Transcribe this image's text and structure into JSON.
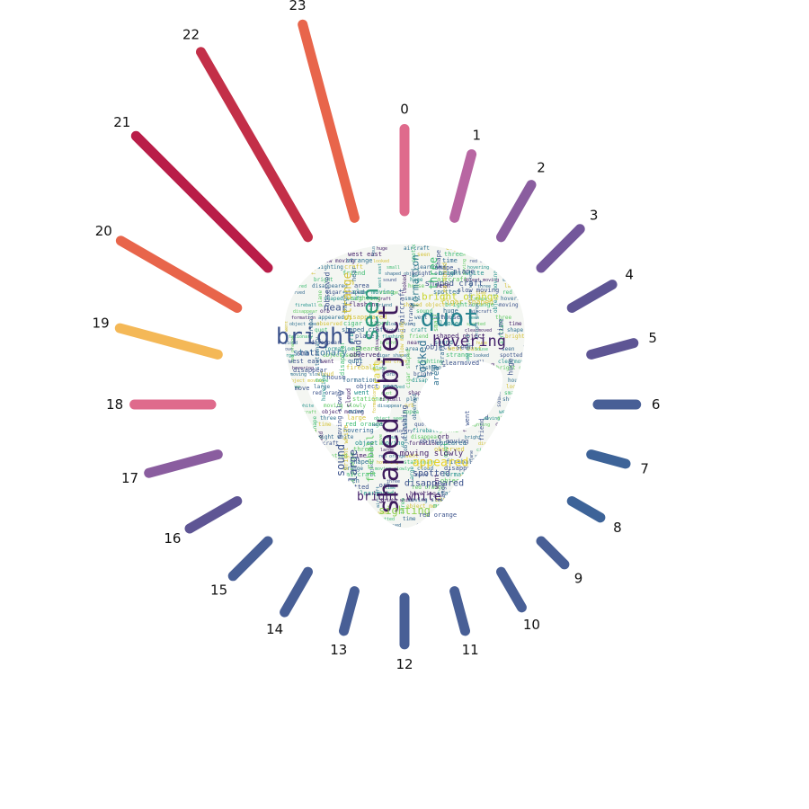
{
  "chart_data": {
    "type": "radial-bar",
    "categories": [
      "0",
      "1",
      "2",
      "3",
      "4",
      "5",
      "6",
      "7",
      "8",
      "9",
      "10",
      "11",
      "12",
      "13",
      "14",
      "15",
      "16",
      "17",
      "18",
      "19",
      "20",
      "21",
      "22",
      "23"
    ],
    "values": [
      30,
      24,
      22,
      20,
      17,
      16,
      14,
      13,
      12,
      12,
      15,
      15,
      17,
      15,
      17,
      18,
      20,
      26,
      28,
      37,
      49,
      68,
      78,
      73
    ],
    "colors": [
      "#df6a8c",
      "#b866a2",
      "#8a5d9f",
      "#73579b",
      "#5e5594",
      "#5e5594",
      "#485f96",
      "#3d6398",
      "#3d6398",
      "#485f96",
      "#485f96",
      "#485f96",
      "#485f96",
      "#485f96",
      "#485f96",
      "#485f96",
      "#5e5594",
      "#8a5d9f",
      "#df6a8c",
      "#f4b857",
      "#e8654b",
      "#b91d48",
      "#c32f48",
      "#e8654b"
    ],
    "title": "",
    "xlabel": "",
    "ylabel": "",
    "grid": false,
    "legend": "none"
  },
  "wordcloud": {
    "shape": "alien-head",
    "words": [
      {
        "text": "shaped object",
        "color": "#3d1a5c"
      },
      {
        "text": "quot",
        "color": "#26828e"
      },
      {
        "text": "seen",
        "color": "#2e9a7e"
      },
      {
        "text": "bright",
        "color": "#3b528b"
      },
      {
        "text": "hovering",
        "color": "#44216a"
      },
      {
        "text": "strange",
        "color": "#d4c33a"
      },
      {
        "text": "formation",
        "color": "#2c7a8c"
      },
      {
        "text": "bright orange",
        "color": "#c9d52f"
      },
      {
        "text": "shaped craft",
        "color": "#3b528b"
      },
      {
        "text": "three",
        "color": "#3fbc73"
      },
      {
        "text": "near",
        "color": "#3b528b"
      },
      {
        "text": "stationary",
        "color": "#3e7aa0"
      },
      {
        "text": "looked",
        "color": "#2a6e8e"
      },
      {
        "text": "appeared",
        "color": "#e8d22a"
      },
      {
        "text": "bright white",
        "color": "#44216a"
      },
      {
        "text": "sighting",
        "color": "#8fd14f"
      },
      {
        "text": "large",
        "color": "#3b528b"
      },
      {
        "text": "sound",
        "color": "#3b528b"
      },
      {
        "text": "fireball",
        "color": "#5ec962"
      },
      {
        "text": "spotted",
        "color": "#3b528b"
      },
      {
        "text": "disappeared",
        "color": "#3b528b"
      },
      {
        "text": "moving slowly",
        "color": "#44216a"
      },
      {
        "text": "craft",
        "color": "#dbd234"
      },
      {
        "text": "object seen",
        "color": "#3b528b"
      },
      {
        "text": "huge",
        "color": "#3b528b"
      },
      {
        "text": "plane",
        "color": "#3b528b"
      },
      {
        "text": "time",
        "color": "#3b528b"
      },
      {
        "text": "area",
        "color": "#2a6e8e"
      },
      {
        "text": "cloud",
        "color": "#3b528b"
      },
      {
        "text": "small",
        "color": "#3b528b"
      },
      {
        "text": "observed",
        "color": "#3b528b"
      },
      {
        "text": "aircraft",
        "color": "#3b528b"
      },
      {
        "text": "flashing",
        "color": "#3b528b"
      },
      {
        "text": "red orange",
        "color": "#3b528b"
      },
      {
        "text": "west east",
        "color": "#3b528b"
      },
      {
        "text": "disappear",
        "color": "#3b528b"
      },
      {
        "text": "clearmoved",
        "color": "#3b528b"
      },
      {
        "text": "cigar shaped",
        "color": "#d4c33a"
      },
      {
        "text": "object moving",
        "color": "#3b528b"
      },
      {
        "text": "friend",
        "color": "#3b528b"
      },
      {
        "text": "went",
        "color": "#3b528b"
      },
      {
        "text": "house",
        "color": "#3b528b"
      },
      {
        "text": "orb",
        "color": "#3b528b"
      },
      {
        "text": "shape",
        "color": "#3b528b"
      },
      {
        "text": "slow moving",
        "color": "#3b528b"
      },
      {
        "text": "move",
        "color": "#3b528b"
      }
    ]
  }
}
